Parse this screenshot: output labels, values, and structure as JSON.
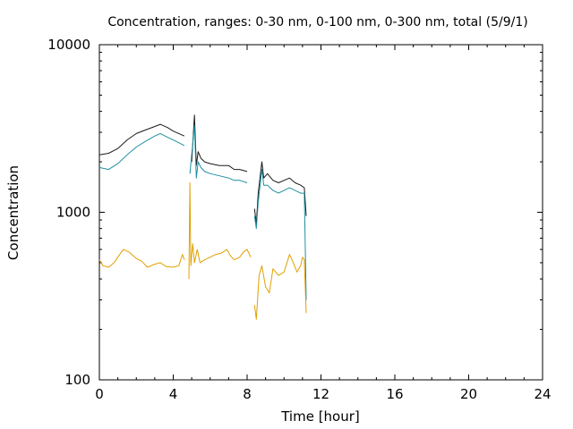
{
  "chart_data": {
    "type": "line",
    "title": "Concentration, ranges: 0-30 nm, 0-100 nm, 0-300 nm, total (5/9/1)",
    "xlabel": "Time [hour]",
    "ylabel": "Concentration",
    "xlim": [
      0,
      24
    ],
    "ylim": [
      100,
      10000
    ],
    "yscale": "log",
    "grid": false,
    "xticks": [
      0,
      4,
      8,
      12,
      16,
      20,
      24
    ],
    "yticks": [
      100,
      1000,
      10000
    ],
    "xtick_labels": [
      "0",
      "4",
      "8",
      "12",
      "16",
      "20",
      "24"
    ],
    "ytick_labels": [
      "100",
      "1000",
      "10000"
    ],
    "series": [
      {
        "color": "#1a1a1a",
        "segments": [
          [
            [
              0.0,
              2200
            ],
            [
              0.5,
              2250
            ],
            [
              1.0,
              2400
            ],
            [
              1.5,
              2700
            ],
            [
              2.0,
              2950
            ],
            [
              2.5,
              3100
            ],
            [
              3.0,
              3250
            ],
            [
              3.3,
              3350
            ],
            [
              3.7,
              3200
            ],
            [
              4.0,
              3050
            ],
            [
              4.3,
              2950
            ],
            [
              4.6,
              2850
            ]
          ],
          [
            [
              5.0,
              2000
            ],
            [
              5.05,
              2500
            ],
            [
              5.15,
              3800
            ],
            [
              5.25,
              1900
            ],
            [
              5.35,
              2300
            ],
            [
              5.5,
              2100
            ],
            [
              5.7,
              2000
            ],
            [
              6.0,
              1950
            ],
            [
              6.5,
              1900
            ],
            [
              7.0,
              1900
            ],
            [
              7.3,
              1800
            ],
            [
              7.6,
              1800
            ],
            [
              8.0,
              1750
            ]
          ],
          [
            [
              8.4,
              1050
            ],
            [
              8.5,
              850
            ],
            [
              8.6,
              1300
            ],
            [
              8.8,
              2000
            ],
            [
              8.9,
              1600
            ],
            [
              9.1,
              1700
            ],
            [
              9.4,
              1550
            ],
            [
              9.7,
              1500
            ],
            [
              10.0,
              1550
            ],
            [
              10.3,
              1600
            ],
            [
              10.6,
              1500
            ],
            [
              10.9,
              1450
            ],
            [
              11.1,
              1400
            ],
            [
              11.2,
              950
            ]
          ]
        ]
      },
      {
        "color": "#1f8fa0",
        "segments": [
          [
            [
              0.0,
              1850
            ],
            [
              0.5,
              1800
            ],
            [
              1.0,
              1950
            ],
            [
              1.5,
              2200
            ],
            [
              2.0,
              2450
            ],
            [
              2.5,
              2650
            ],
            [
              3.0,
              2850
            ],
            [
              3.3,
              2950
            ],
            [
              3.7,
              2800
            ],
            [
              4.0,
              2700
            ],
            [
              4.3,
              2600
            ],
            [
              4.6,
              2500
            ]
          ],
          [
            [
              4.9,
              1700
            ],
            [
              5.0,
              2200
            ],
            [
              5.15,
              3300
            ],
            [
              5.25,
              1600
            ],
            [
              5.35,
              2000
            ],
            [
              5.5,
              1850
            ],
            [
              5.7,
              1750
            ],
            [
              6.0,
              1700
            ],
            [
              6.5,
              1650
            ],
            [
              7.0,
              1600
            ],
            [
              7.3,
              1550
            ],
            [
              7.6,
              1550
            ],
            [
              8.0,
              1500
            ]
          ],
          [
            [
              8.4,
              950
            ],
            [
              8.5,
              800
            ],
            [
              8.6,
              1150
            ],
            [
              8.8,
              1800
            ],
            [
              8.9,
              1450
            ],
            [
              9.1,
              1450
            ],
            [
              9.4,
              1350
            ],
            [
              9.7,
              1300
            ],
            [
              10.0,
              1350
            ],
            [
              10.3,
              1400
            ],
            [
              10.6,
              1350
            ],
            [
              10.9,
              1300
            ],
            [
              11.1,
              1300
            ],
            [
              11.2,
              300
            ]
          ]
        ]
      },
      {
        "color": "#e0a000",
        "segments": [
          [
            [
              0.0,
              520
            ],
            [
              0.2,
              480
            ],
            [
              0.5,
              470
            ],
            [
              0.8,
              500
            ],
            [
              1.0,
              540
            ],
            [
              1.3,
              600
            ],
            [
              1.6,
              580
            ],
            [
              2.0,
              530
            ],
            [
              2.3,
              510
            ],
            [
              2.6,
              470
            ],
            [
              3.0,
              490
            ],
            [
              3.3,
              500
            ],
            [
              3.6,
              475
            ],
            [
              4.0,
              470
            ],
            [
              4.3,
              480
            ],
            [
              4.5,
              560
            ],
            [
              4.6,
              520
            ]
          ],
          [
            [
              4.85,
              400
            ],
            [
              4.9,
              1500
            ],
            [
              4.95,
              480
            ],
            [
              5.05,
              650
            ],
            [
              5.15,
              500
            ],
            [
              5.3,
              600
            ],
            [
              5.45,
              500
            ],
            [
              5.7,
              520
            ],
            [
              6.0,
              540
            ],
            [
              6.3,
              560
            ],
            [
              6.6,
              570
            ],
            [
              6.9,
              600
            ],
            [
              7.1,
              550
            ],
            [
              7.3,
              520
            ],
            [
              7.6,
              540
            ],
            [
              7.8,
              580
            ],
            [
              8.0,
              600
            ],
            [
              8.2,
              540
            ]
          ],
          [
            [
              8.4,
              280
            ],
            [
              8.5,
              230
            ],
            [
              8.65,
              420
            ],
            [
              8.8,
              480
            ],
            [
              9.0,
              360
            ],
            [
              9.2,
              330
            ],
            [
              9.4,
              460
            ],
            [
              9.7,
              420
            ],
            [
              10.0,
              440
            ],
            [
              10.3,
              560
            ],
            [
              10.5,
              500
            ],
            [
              10.7,
              440
            ],
            [
              10.9,
              480
            ],
            [
              11.0,
              540
            ],
            [
              11.1,
              520
            ],
            [
              11.2,
              250
            ]
          ]
        ]
      }
    ]
  }
}
